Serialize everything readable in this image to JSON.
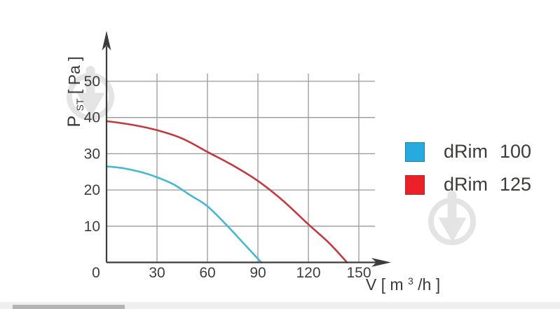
{
  "chart_data": {
    "type": "line",
    "title": "",
    "xlabel": "V [ m3/h ]",
    "ylabel": "PST [ Pa ]",
    "xlabel_parts": {
      "pre": "V [ m",
      "sup": "3",
      "post": "/h ]"
    },
    "ylabel_parts": {
      "main": "P",
      "sub": "ST",
      "unit": " [ Pa ]"
    },
    "xlim": [
      0,
      157
    ],
    "ylim": [
      0,
      52
    ],
    "x_ticks": [
      0,
      30,
      60,
      90,
      120,
      150
    ],
    "y_ticks": [
      0,
      10,
      20,
      30,
      40,
      50
    ],
    "grid": true,
    "legend_position": "right-of-plot",
    "colors": {
      "grid": "#999999",
      "axis": "#3c3c3c",
      "tick_text": "#3d3d3d",
      "legend_text": "#3c3c3b",
      "watermark": "#e4e4e4"
    },
    "series": [
      {
        "name": "dRim",
        "label": "100",
        "swatch_fill": "#29aadf",
        "swatch_border": "#1580ad",
        "line_color": "#46b8d0",
        "points": [
          [
            0,
            26.5
          ],
          [
            10,
            26
          ],
          [
            20,
            25
          ],
          [
            30,
            23.5
          ],
          [
            40,
            21.5
          ],
          [
            50,
            18.5
          ],
          [
            60,
            15.5
          ],
          [
            72,
            10
          ],
          [
            82,
            5
          ],
          [
            92,
            0
          ]
        ]
      },
      {
        "name": "dRim",
        "label": "125",
        "swatch_fill": "#ec2127",
        "swatch_border": "#a8262c",
        "line_color": "#c23a40",
        "points": [
          [
            0,
            39
          ],
          [
            15,
            38
          ],
          [
            30,
            36.5
          ],
          [
            45,
            34.2
          ],
          [
            60,
            30.5
          ],
          [
            75,
            26.8
          ],
          [
            90,
            22.5
          ],
          [
            105,
            17
          ],
          [
            120,
            10.5
          ],
          [
            132,
            5.5
          ],
          [
            143,
            0
          ]
        ]
      }
    ]
  },
  "icons": {
    "watermark": "funnel-circle-watermark"
  }
}
